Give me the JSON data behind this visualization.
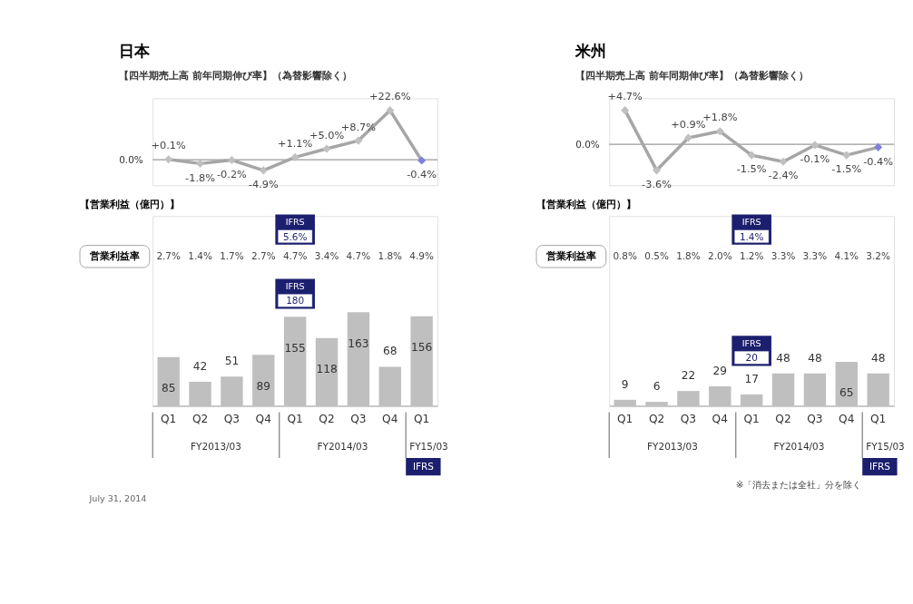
{
  "chart_data": [
    {
      "type": "line",
      "title": "日本",
      "subtitle": "【四半期売上高 前年同期伸び率】（為替影響除く）",
      "categories": [
        null,
        null,
        null,
        null,
        null,
        null,
        null,
        null,
        null
      ],
      "tick_labels": false,
      "ref_lines": [
        {
          "axis": "y",
          "value": 0,
          "label": "0.0%",
          "color": "#999999"
        }
      ],
      "marker": "diamond",
      "line_style": "solid",
      "series": [
        {
          "color": "#a6a6a6",
          "colors": [
            "#c0c0c0",
            "#c0c0c0",
            "#c0c0c0",
            "#c0c0c0",
            "#c0c0c0",
            "#c0c0c0",
            "#c0c0c0",
            "#c0c0c0",
            "#8080e0"
          ],
          "values": [
            0.1,
            -1.8,
            -0.2,
            -4.9,
            1.1,
            5.0,
            8.7,
            22.6,
            -0.4
          ],
          "value_labels": [
            "+0.1%",
            "-1.8%",
            "-0.2%",
            "-4.9%",
            "+1.1%",
            "+5.0%",
            "+8.7%",
            "+22.6%",
            "-0.4%"
          ]
        }
      ]
    },
    {
      "type": "bar",
      "title": "【営業利益（億円）】",
      "categories": [
        "Q1",
        "Q2",
        "Q3",
        "Q4",
        "Q1",
        "Q2",
        "Q3",
        "Q4",
        "Q1"
      ],
      "tick_labels": "x",
      "ylim": [
        0,
        330
      ],
      "color": "#bfbfbf",
      "data_labels": true,
      "values": [
        85,
        42,
        51,
        89,
        155,
        118,
        163,
        68,
        156
      ],
      "annotations": [
        "営業利益率",
        "2.7%",
        "1.4%",
        "1.7%",
        "2.7%",
        "4.7%",
        "3.4%",
        "4.7%",
        "1.8%",
        "4.9%",
        "IFRS",
        "5.6%",
        "IFRS",
        "180",
        "FY2013/03",
        "FY2014/03",
        "FY15/03",
        "IFRS",
        "July 31, 2014"
      ]
    },
    {
      "type": "line",
      "title": "米州",
      "subtitle": "【四半期売上高 前年同期伸び率】（為替影響除く）",
      "categories": [
        null,
        null,
        null,
        null,
        null,
        null,
        null,
        null,
        null
      ],
      "tick_labels": false,
      "ref_lines": [
        {
          "axis": "y",
          "value": 0,
          "label": "0.0%",
          "color": "#999999"
        }
      ],
      "marker": "diamond",
      "line_style": "solid",
      "series": [
        {
          "color": "#a6a6a6",
          "colors": [
            "#c0c0c0",
            "#c0c0c0",
            "#c0c0c0",
            "#c0c0c0",
            "#c0c0c0",
            "#c0c0c0",
            "#c0c0c0",
            "#c0c0c0",
            "#8080e0"
          ],
          "values": [
            4.7,
            -3.6,
            0.9,
            1.8,
            -1.5,
            -2.4,
            -0.1,
            -1.5,
            -0.4
          ],
          "value_labels": [
            "+4.7%",
            "-3.6%",
            "+0.9%",
            "+1.8%",
            "-1.5%",
            "-2.4%",
            "-0.1%",
            "-1.5%",
            "-0.4%"
          ]
        }
      ]
    },
    {
      "type": "bar",
      "title": "【営業利益（億円）】",
      "categories": [
        "Q1",
        "Q2",
        "Q3",
        "Q4",
        "Q1",
        "Q2",
        "Q3",
        "Q4",
        "Q1"
      ],
      "tick_labels": "x",
      "ylim": [
        0,
        280
      ],
      "color": "#bfbfbf",
      "data_labels": true,
      "values": [
        9,
        6,
        22,
        29,
        17,
        48,
        48,
        65,
        48
      ],
      "annotations": [
        "営業利益率",
        "0.8%",
        "0.5%",
        "1.8%",
        "2.0%",
        "1.2%",
        "3.3%",
        "3.3%",
        "4.1%",
        "3.2%",
        "IFRS",
        "1.4%",
        "IFRS",
        "20",
        "FY2013/03",
        "FY2014/03",
        "FY15/03",
        "IFRS",
        "※「消去または全社」分を除く"
      ]
    }
  ]
}
